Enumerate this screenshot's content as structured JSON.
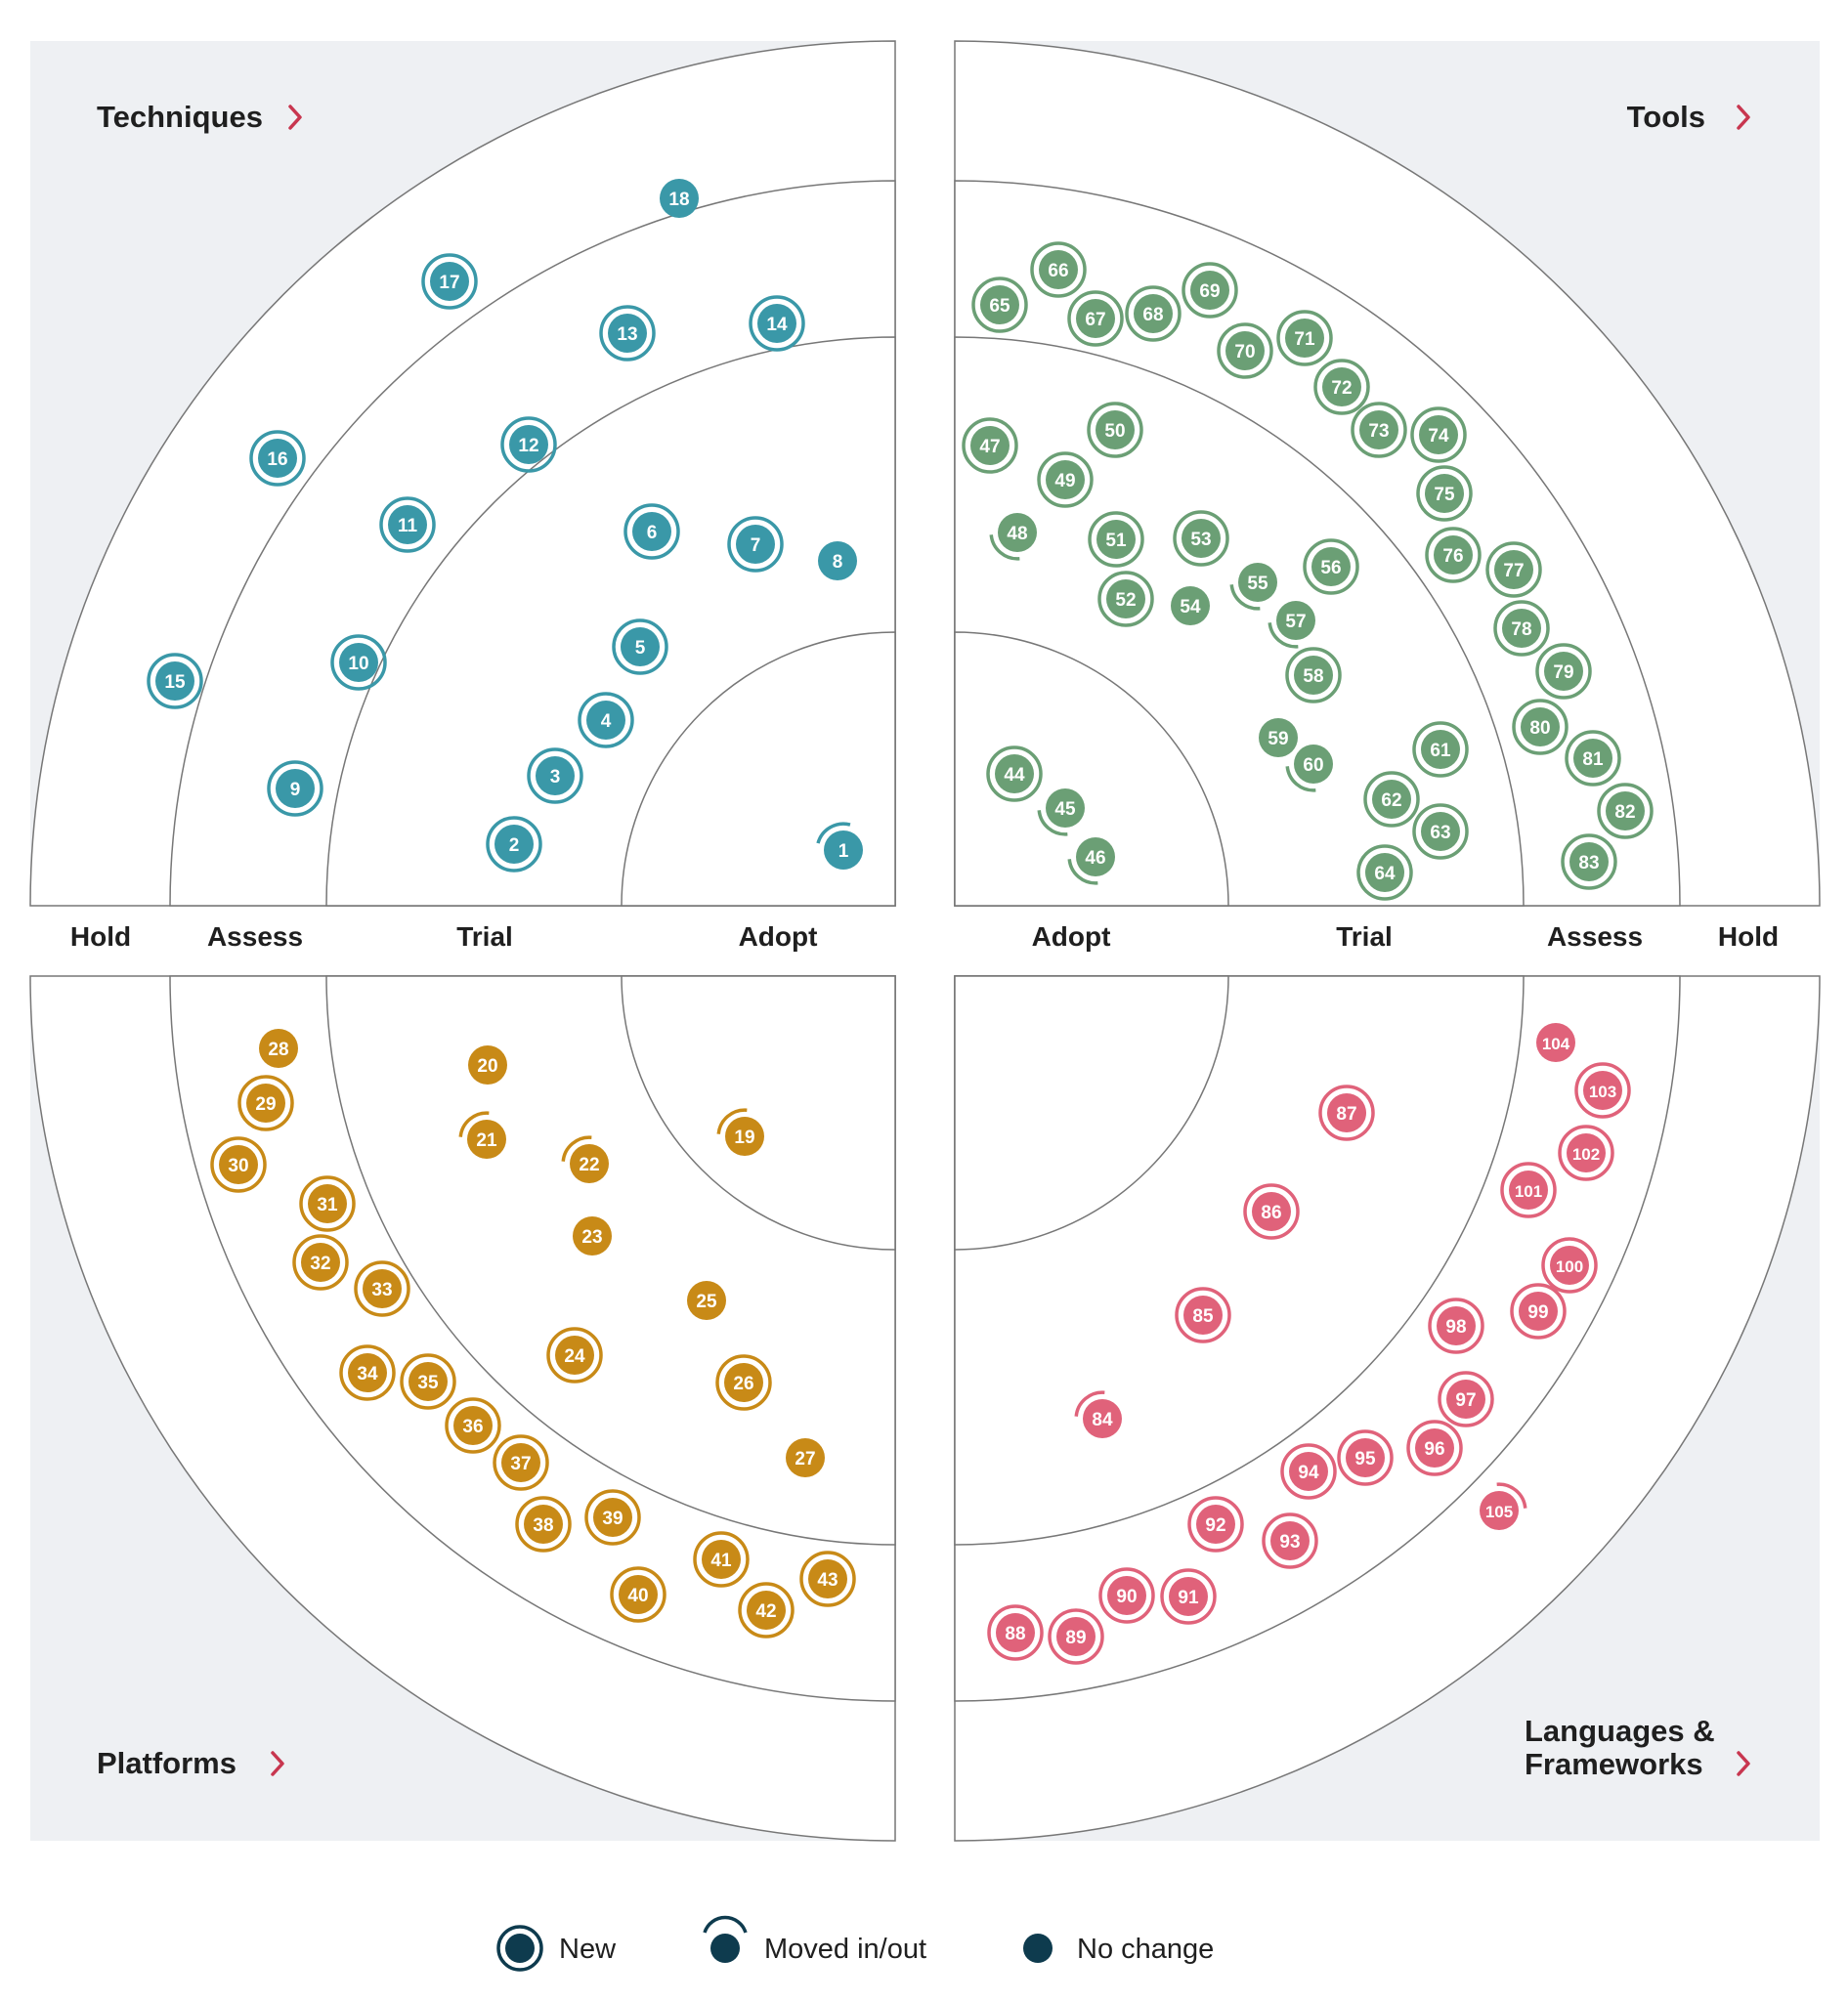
{
  "rings": [
    "Adopt",
    "Trial",
    "Assess",
    "Hold"
  ],
  "quadrants": [
    {
      "name": "Techniques",
      "color": "#3a98a8"
    },
    {
      "name": "Tools",
      "color": "#6b9f75"
    },
    {
      "name": "Platforms",
      "color": "#c88a17"
    },
    {
      "name": "Languages & Frameworks",
      "color": "#e0627a"
    }
  ],
  "status_colors": {
    "legend": "#0e3b4e"
  },
  "legend": {
    "new": "New",
    "moved": "Moved in/out",
    "no_change": "No change"
  },
  "blips": [
    {
      "n": "1",
      "q": 0,
      "s": "moved"
    },
    {
      "n": "2",
      "q": 0,
      "s": "new"
    },
    {
      "n": "3",
      "q": 0,
      "s": "new"
    },
    {
      "n": "4",
      "q": 0,
      "s": "new"
    },
    {
      "n": "5",
      "q": 0,
      "s": "new"
    },
    {
      "n": "6",
      "q": 0,
      "s": "new"
    },
    {
      "n": "7",
      "q": 0,
      "s": "new"
    },
    {
      "n": "8",
      "q": 0,
      "s": "none"
    },
    {
      "n": "9",
      "q": 0,
      "s": "new"
    },
    {
      "n": "10",
      "q": 0,
      "s": "new"
    },
    {
      "n": "11",
      "q": 0,
      "s": "new"
    },
    {
      "n": "12",
      "q": 0,
      "s": "new"
    },
    {
      "n": "13",
      "q": 0,
      "s": "new"
    },
    {
      "n": "14",
      "q": 0,
      "s": "new"
    },
    {
      "n": "15",
      "q": 0,
      "s": "new"
    },
    {
      "n": "16",
      "q": 0,
      "s": "new"
    },
    {
      "n": "17",
      "q": 0,
      "s": "new"
    },
    {
      "n": "18",
      "q": 0,
      "s": "none"
    },
    {
      "n": "19",
      "q": 2,
      "s": "moved"
    },
    {
      "n": "20",
      "q": 2,
      "s": "none"
    },
    {
      "n": "21",
      "q": 2,
      "s": "moved"
    },
    {
      "n": "22",
      "q": 2,
      "s": "moved"
    },
    {
      "n": "23",
      "q": 2,
      "s": "none"
    },
    {
      "n": "24",
      "q": 2,
      "s": "new"
    },
    {
      "n": "25",
      "q": 2,
      "s": "none"
    },
    {
      "n": "26",
      "q": 2,
      "s": "new"
    },
    {
      "n": "27",
      "q": 2,
      "s": "none"
    },
    {
      "n": "28",
      "q": 2,
      "s": "none"
    },
    {
      "n": "29",
      "q": 2,
      "s": "new"
    },
    {
      "n": "30",
      "q": 2,
      "s": "new"
    },
    {
      "n": "31",
      "q": 2,
      "s": "new"
    },
    {
      "n": "32",
      "q": 2,
      "s": "new"
    },
    {
      "n": "33",
      "q": 2,
      "s": "new"
    },
    {
      "n": "34",
      "q": 2,
      "s": "new"
    },
    {
      "n": "35",
      "q": 2,
      "s": "new"
    },
    {
      "n": "36",
      "q": 2,
      "s": "new"
    },
    {
      "n": "37",
      "q": 2,
      "s": "new"
    },
    {
      "n": "38",
      "q": 2,
      "s": "new"
    },
    {
      "n": "39",
      "q": 2,
      "s": "new"
    },
    {
      "n": "40",
      "q": 2,
      "s": "new"
    },
    {
      "n": "41",
      "q": 2,
      "s": "new"
    },
    {
      "n": "42",
      "q": 2,
      "s": "new"
    },
    {
      "n": "43",
      "q": 2,
      "s": "new"
    },
    {
      "n": "44",
      "q": 1,
      "s": "new"
    },
    {
      "n": "45",
      "q": 1,
      "s": "moved"
    },
    {
      "n": "46",
      "q": 1,
      "s": "moved"
    },
    {
      "n": "47",
      "q": 1,
      "s": "new"
    },
    {
      "n": "48",
      "q": 1,
      "s": "moved"
    },
    {
      "n": "49",
      "q": 1,
      "s": "new"
    },
    {
      "n": "50",
      "q": 1,
      "s": "new"
    },
    {
      "n": "51",
      "q": 1,
      "s": "new"
    },
    {
      "n": "52",
      "q": 1,
      "s": "new"
    },
    {
      "n": "53",
      "q": 1,
      "s": "new"
    },
    {
      "n": "54",
      "q": 1,
      "s": "none"
    },
    {
      "n": "55",
      "q": 1,
      "s": "moved"
    },
    {
      "n": "56",
      "q": 1,
      "s": "new"
    },
    {
      "n": "57",
      "q": 1,
      "s": "moved"
    },
    {
      "n": "58",
      "q": 1,
      "s": "new"
    },
    {
      "n": "59",
      "q": 1,
      "s": "none"
    },
    {
      "n": "60",
      "q": 1,
      "s": "moved"
    },
    {
      "n": "61",
      "q": 1,
      "s": "new"
    },
    {
      "n": "62",
      "q": 1,
      "s": "new"
    },
    {
      "n": "63",
      "q": 1,
      "s": "new"
    },
    {
      "n": "64",
      "q": 1,
      "s": "new"
    },
    {
      "n": "65",
      "q": 1,
      "s": "new"
    },
    {
      "n": "66",
      "q": 1,
      "s": "new"
    },
    {
      "n": "67",
      "q": 1,
      "s": "new"
    },
    {
      "n": "68",
      "q": 1,
      "s": "new"
    },
    {
      "n": "69",
      "q": 1,
      "s": "new"
    },
    {
      "n": "70",
      "q": 1,
      "s": "new"
    },
    {
      "n": "71",
      "q": 1,
      "s": "new"
    },
    {
      "n": "72",
      "q": 1,
      "s": "new"
    },
    {
      "n": "73",
      "q": 1,
      "s": "new"
    },
    {
      "n": "74",
      "q": 1,
      "s": "new"
    },
    {
      "n": "75",
      "q": 1,
      "s": "new"
    },
    {
      "n": "76",
      "q": 1,
      "s": "new"
    },
    {
      "n": "77",
      "q": 1,
      "s": "new"
    },
    {
      "n": "78",
      "q": 1,
      "s": "new"
    },
    {
      "n": "79",
      "q": 1,
      "s": "new"
    },
    {
      "n": "80",
      "q": 1,
      "s": "new"
    },
    {
      "n": "81",
      "q": 1,
      "s": "new"
    },
    {
      "n": "82",
      "q": 1,
      "s": "new"
    },
    {
      "n": "83",
      "q": 1,
      "s": "new"
    },
    {
      "n": "84",
      "q": 3,
      "s": "moved"
    },
    {
      "n": "85",
      "q": 3,
      "s": "new"
    },
    {
      "n": "86",
      "q": 3,
      "s": "new"
    },
    {
      "n": "87",
      "q": 3,
      "s": "new"
    },
    {
      "n": "88",
      "q": 3,
      "s": "new"
    },
    {
      "n": "89",
      "q": 3,
      "s": "new"
    },
    {
      "n": "90",
      "q": 3,
      "s": "new"
    },
    {
      "n": "91",
      "q": 3,
      "s": "new"
    },
    {
      "n": "92",
      "q": 3,
      "s": "new"
    },
    {
      "n": "93",
      "q": 3,
      "s": "new"
    },
    {
      "n": "94",
      "q": 3,
      "s": "new"
    },
    {
      "n": "95",
      "q": 3,
      "s": "new"
    },
    {
      "n": "96",
      "q": 3,
      "s": "new"
    },
    {
      "n": "97",
      "q": 3,
      "s": "new"
    },
    {
      "n": "98",
      "q": 3,
      "s": "new"
    },
    {
      "n": "99",
      "q": 3,
      "s": "new"
    },
    {
      "n": "100",
      "q": 3,
      "s": "new"
    },
    {
      "n": "101",
      "q": 3,
      "s": "new"
    },
    {
      "n": "102",
      "q": 3,
      "s": "new"
    },
    {
      "n": "103",
      "q": 3,
      "s": "new"
    },
    {
      "n": "104",
      "q": 3,
      "s": "none"
    },
    {
      "n": "105",
      "q": 3,
      "s": "moved"
    }
  ]
}
